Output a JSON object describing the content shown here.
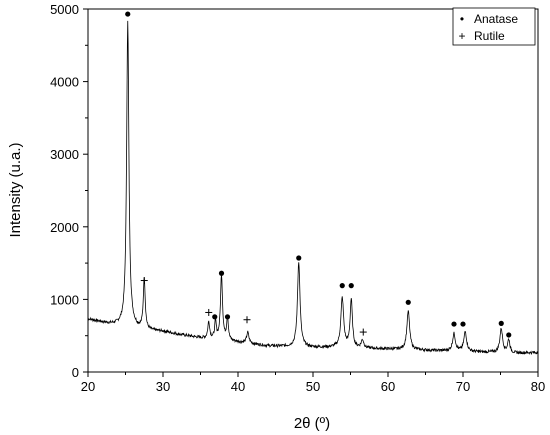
{
  "chart_data": {
    "type": "line",
    "xlabel": "2θ (º)",
    "ylabel": "Intensity (u.a.)",
    "xlim": [
      20,
      80
    ],
    "ylim": [
      0,
      5000
    ],
    "xticks": [
      20,
      30,
      40,
      50,
      60,
      70,
      80
    ],
    "yticks": [
      0,
      1000,
      2000,
      3000,
      4000,
      5000
    ],
    "grid": false,
    "legend_position": "top-right",
    "legend": [
      {
        "symbol": "•",
        "label": "Anatase"
      },
      {
        "symbol": "+",
        "label": "Rutile"
      }
    ],
    "baseline": [
      [
        20,
        730
      ],
      [
        23,
        660
      ],
      [
        25,
        630
      ],
      [
        28,
        570
      ],
      [
        30,
        560
      ],
      [
        32,
        520
      ],
      [
        35,
        470
      ],
      [
        38,
        440
      ],
      [
        41,
        400
      ],
      [
        44,
        360
      ],
      [
        47,
        350
      ],
      [
        50,
        340
      ],
      [
        53,
        340
      ],
      [
        56,
        330
      ],
      [
        59,
        320
      ],
      [
        62,
        310
      ],
      [
        65,
        300
      ],
      [
        68,
        290
      ],
      [
        71,
        280
      ],
      [
        74,
        270
      ],
      [
        77,
        260
      ],
      [
        80,
        270
      ]
    ],
    "peaks": [
      {
        "x": 25.3,
        "height": 4200,
        "width": 0.18
      },
      {
        "x": 27.5,
        "height": 710,
        "width": 0.15
      },
      {
        "x": 36.1,
        "height": 230,
        "width": 0.15
      },
      {
        "x": 37.0,
        "height": 240,
        "width": 0.13
      },
      {
        "x": 37.8,
        "height": 900,
        "width": 0.16
      },
      {
        "x": 38.6,
        "height": 330,
        "width": 0.13
      },
      {
        "x": 41.3,
        "height": 150,
        "width": 0.18
      },
      {
        "x": 48.1,
        "height": 1180,
        "width": 0.2
      },
      {
        "x": 53.9,
        "height": 680,
        "width": 0.22
      },
      {
        "x": 55.1,
        "height": 660,
        "width": 0.18
      },
      {
        "x": 56.6,
        "height": 110,
        "width": 0.2
      },
      {
        "x": 62.7,
        "height": 530,
        "width": 0.22
      },
      {
        "x": 68.8,
        "height": 240,
        "width": 0.22
      },
      {
        "x": 70.3,
        "height": 270,
        "width": 0.22
      },
      {
        "x": 75.1,
        "height": 330,
        "width": 0.22
      },
      {
        "x": 76.1,
        "height": 180,
        "width": 0.18
      }
    ],
    "anatase_markers": [
      {
        "x": 25.3,
        "y": 4930
      },
      {
        "x": 37.8,
        "y": 1360
      },
      {
        "x": 38.6,
        "y": 760
      },
      {
        "x": 36.9,
        "y": 760
      },
      {
        "x": 48.1,
        "y": 1570
      },
      {
        "x": 53.9,
        "y": 1190
      },
      {
        "x": 55.1,
        "y": 1190
      },
      {
        "x": 62.7,
        "y": 960
      },
      {
        "x": 68.8,
        "y": 660
      },
      {
        "x": 70.0,
        "y": 660
      },
      {
        "x": 75.1,
        "y": 670
      },
      {
        "x": 76.1,
        "y": 510
      }
    ],
    "rutile_markers": [
      {
        "x": 27.5,
        "y": 1260
      },
      {
        "x": 36.1,
        "y": 820
      },
      {
        "x": 41.2,
        "y": 720
      },
      {
        "x": 56.7,
        "y": 550
      }
    ]
  }
}
